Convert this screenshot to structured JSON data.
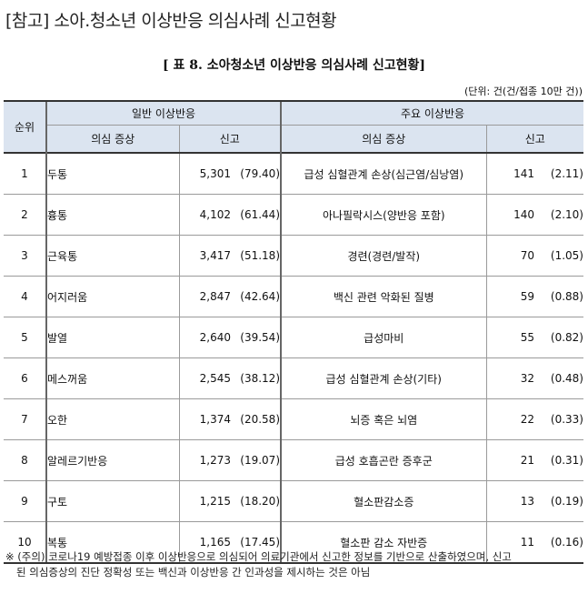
{
  "heading": "[참고] 소아.청소년 이상반응 의심사례 신고현황",
  "table_caption": "[ 표 8. 소아청소년 이상반응 의심사례 신고현황]",
  "unit_note": "(단위: 건(건/접종 10만 건))",
  "headers": {
    "rank": "순위",
    "general_group": "일반 이상반응",
    "major_group": "주요 이상반응",
    "symptom": "의심 증상",
    "reports": "신고"
  },
  "rows": [
    {
      "rank": "1",
      "general_symptom": "두통",
      "general_count": "5,301",
      "general_rate": "(79.40)",
      "major_symptom": "급성 심혈관계 손상(심근염/심낭염)",
      "major_count": "141",
      "major_rate": "(2.11)"
    },
    {
      "rank": "2",
      "general_symptom": "흉통",
      "general_count": "4,102",
      "general_rate": "(61.44)",
      "major_symptom": "아나필락시스(양반응 포함)",
      "major_count": "140",
      "major_rate": "(2.10)"
    },
    {
      "rank": "3",
      "general_symptom": "근육통",
      "general_count": "3,417",
      "general_rate": "(51.18)",
      "major_symptom": "경련(경련/발작)",
      "major_count": "70",
      "major_rate": "(1.05)"
    },
    {
      "rank": "4",
      "general_symptom": "어지러움",
      "general_count": "2,847",
      "general_rate": "(42.64)",
      "major_symptom": "백신 관련 악화된 질병",
      "major_count": "59",
      "major_rate": "(0.88)"
    },
    {
      "rank": "5",
      "general_symptom": "발열",
      "general_count": "2,640",
      "general_rate": "(39.54)",
      "major_symptom": "급성마비",
      "major_count": "55",
      "major_rate": "(0.82)"
    },
    {
      "rank": "6",
      "general_symptom": "메스꺼움",
      "general_count": "2,545",
      "general_rate": "(38.12)",
      "major_symptom": "급성 심혈관계 손상(기타)",
      "major_count": "32",
      "major_rate": "(0.48)"
    },
    {
      "rank": "7",
      "general_symptom": "오한",
      "general_count": "1,374",
      "general_rate": "(20.58)",
      "major_symptom": "뇌증 혹은 뇌염",
      "major_count": "22",
      "major_rate": "(0.33)"
    },
    {
      "rank": "8",
      "general_symptom": "알레르기반응",
      "general_count": "1,273",
      "general_rate": "(19.07)",
      "major_symptom": "급성 호흡곤란 증후군",
      "major_count": "21",
      "major_rate": "(0.31)"
    },
    {
      "rank": "9",
      "general_symptom": "구토",
      "general_count": "1,215",
      "general_rate": "(18.20)",
      "major_symptom": "혈소판감소증",
      "major_count": "13",
      "major_rate": "(0.19)"
    },
    {
      "rank": "10",
      "general_symptom": "복통",
      "general_count": "1,165",
      "general_rate": "(17.45)",
      "major_symptom": "혈소판 감소 자반증",
      "major_count": "11",
      "major_rate": "(0.16)"
    }
  ],
  "footnote": {
    "line1": "※ (주의) 코로나19 예방접종 이후 이상반응으로 의심되어 의료기관에서 신고한 정보를 기반으로 산출하였으며, 신고",
    "line2": "된 의심증상의 진단 정확성 또는 백신과 이상반응 간 인과성을 제시하는 것은 아님"
  }
}
